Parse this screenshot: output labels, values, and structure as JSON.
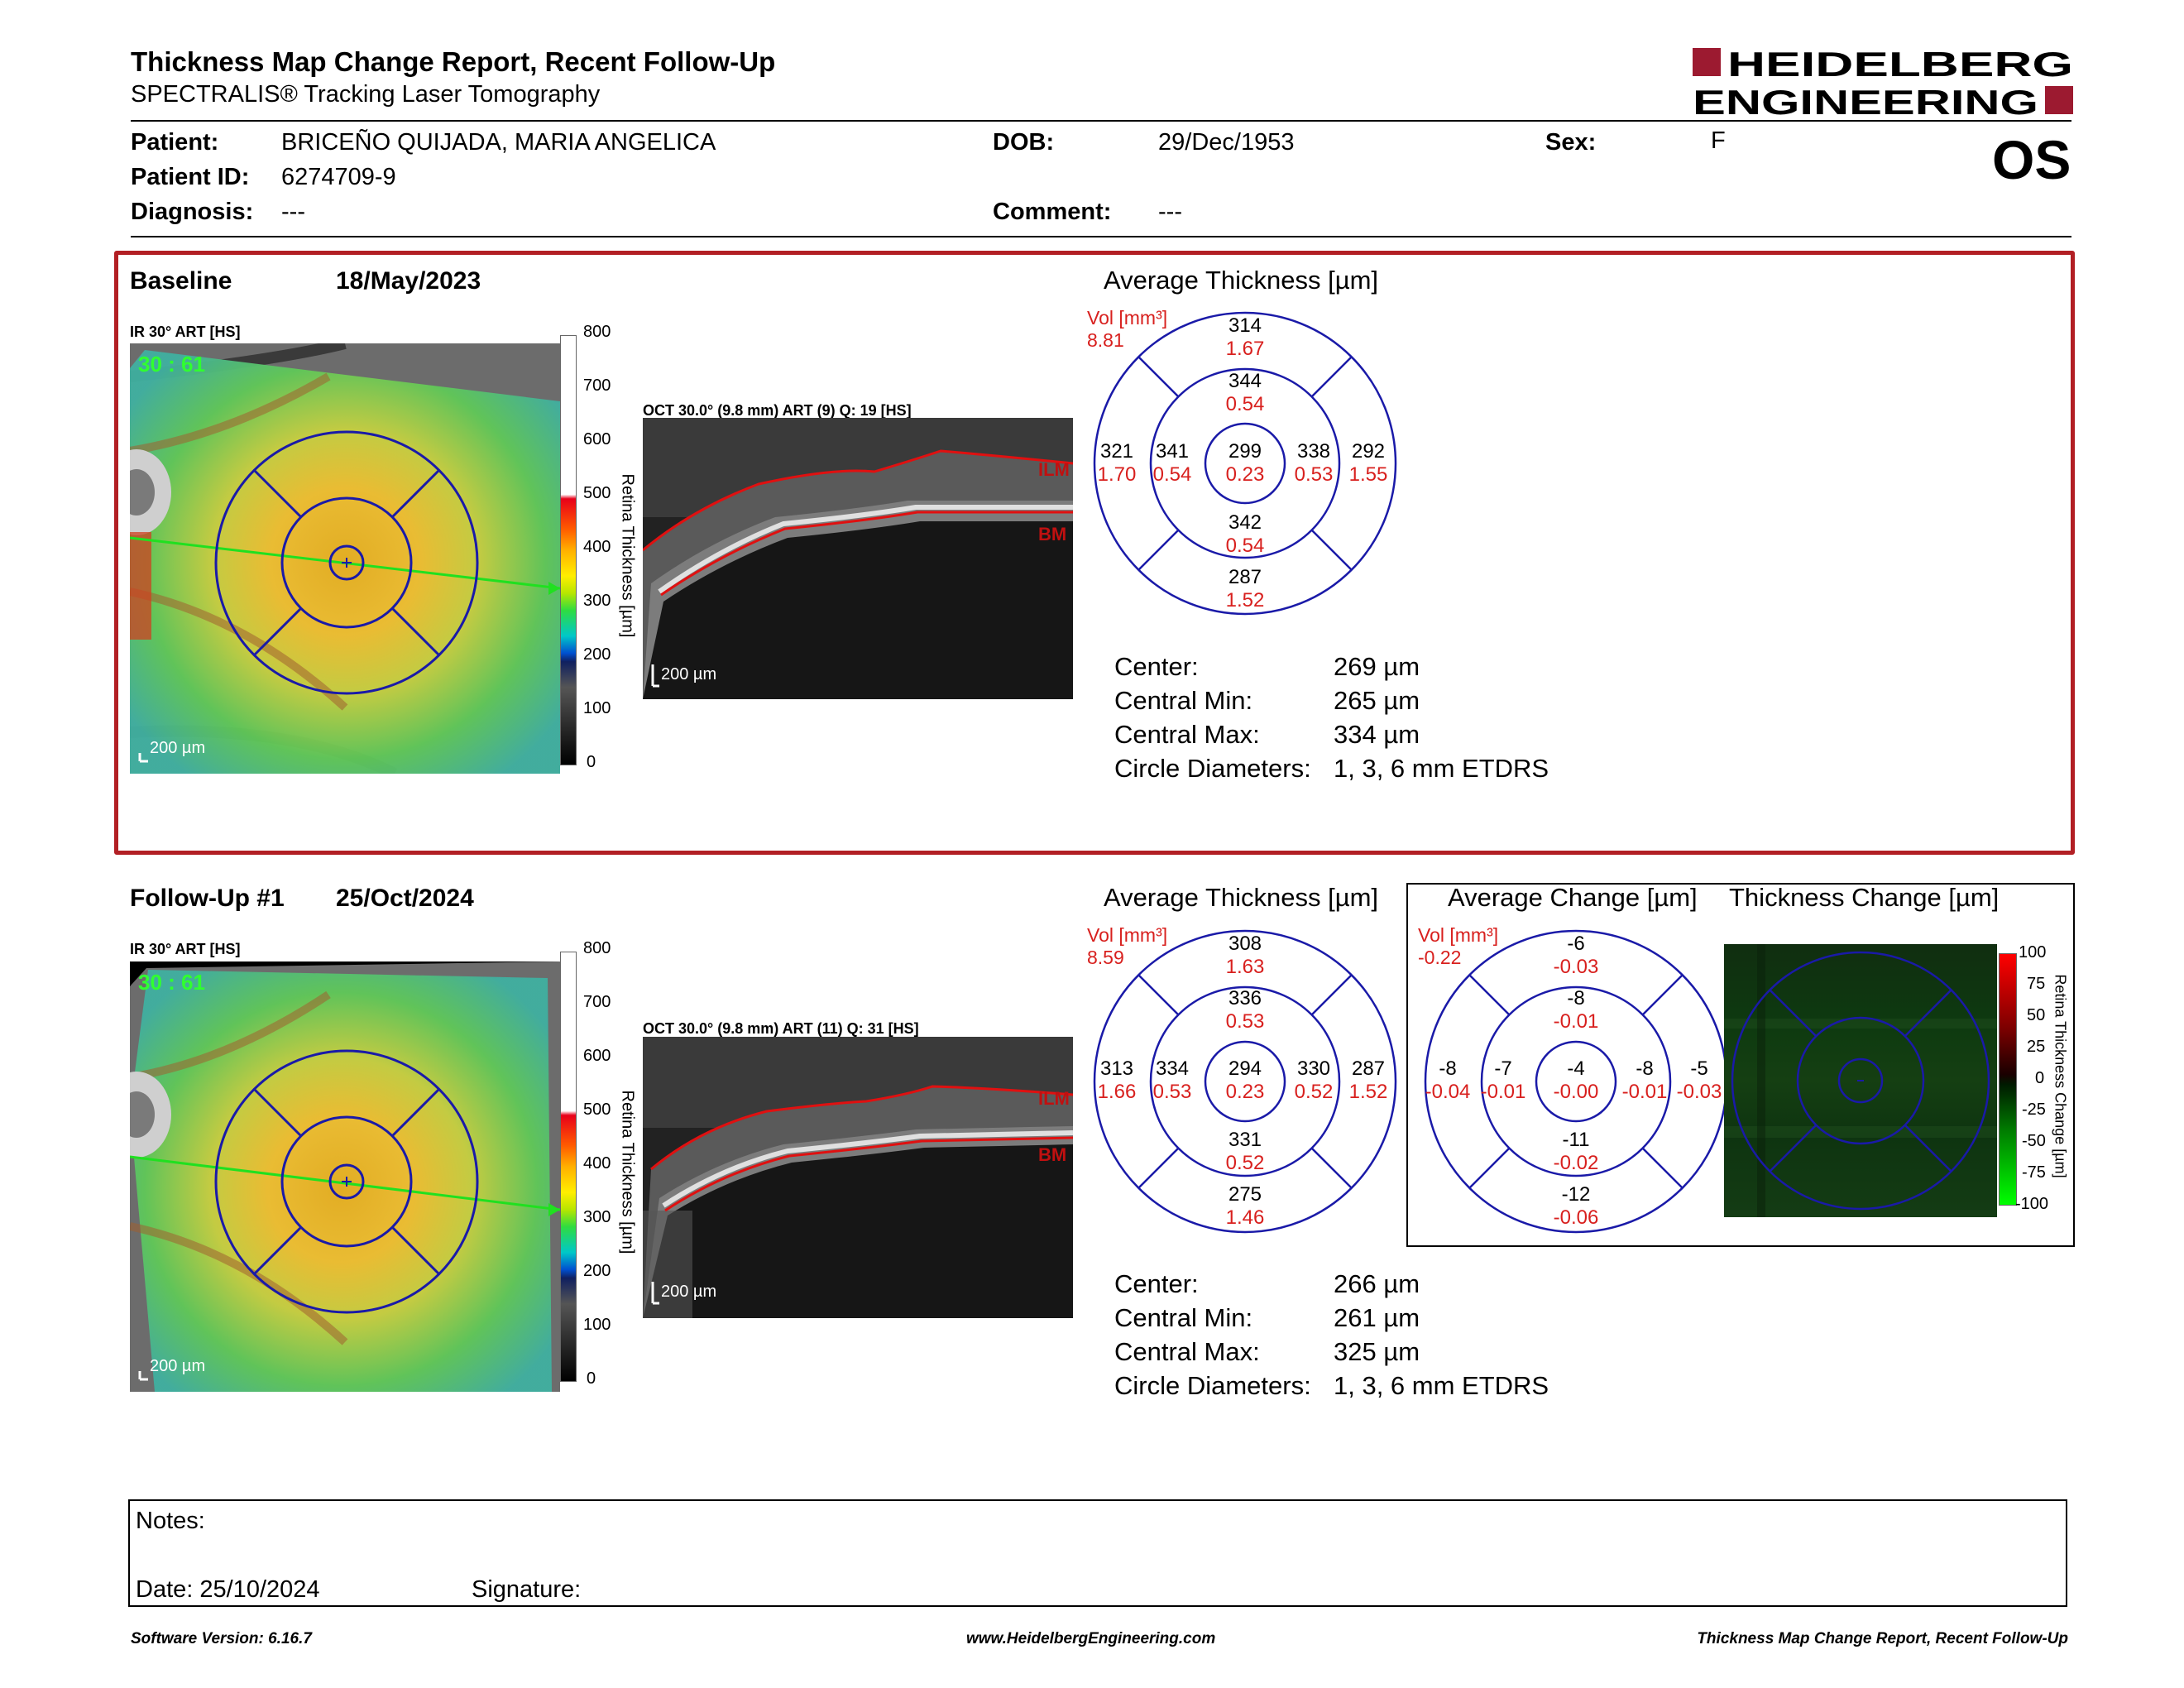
{
  "header": {
    "title": "Thickness Map Change Report, Recent Follow-Up",
    "subtitle": "SPECTRALIS® Tracking Laser Tomography",
    "logo_line1": "HEIDELBERG",
    "logo_line2": "ENGINEERING",
    "eye": "OS",
    "brand_color": "#9c1a30"
  },
  "patient": {
    "patient_label": "Patient:",
    "patient_value": "BRICEÑO QUIJADA, MARIA ANGELICA",
    "id_label": "Patient ID:",
    "id_value": "6274709-9",
    "diagnosis_label": "Diagnosis:",
    "diagnosis_value": "---",
    "dob_label": "DOB:",
    "dob_value": "29/Dec/1953",
    "comment_label": "Comment:",
    "comment_value": "---",
    "sex_label": "Sex:",
    "sex_value": "F"
  },
  "baseline": {
    "title": "Baseline",
    "date": "18/May/2023",
    "ir_label": "IR 30° ART [HS]",
    "fundus_tag": "30 : 61",
    "scale_label": "200 µm",
    "oct_label": "OCT 30.0° (9.8 mm) ART (9) Q: 19 [HS]",
    "oct_scale": "200 µm",
    "ilm": "ILM",
    "bm": "BM",
    "colorbar_ticks": [
      "800",
      "700",
      "600",
      "500",
      "400",
      "300",
      "200",
      "100",
      "0"
    ],
    "colorbar_title": "Retina Thickness [µm]",
    "avg_title": "Average Thickness [µm]",
    "vol_label": "Vol [mm³]",
    "vol_value": "8.81",
    "sectors": {
      "outer_top": {
        "t": "314",
        "v": "1.67"
      },
      "inner_top": {
        "t": "344",
        "v": "0.54"
      },
      "outer_left": {
        "t": "321",
        "v": "1.70"
      },
      "inner_left": {
        "t": "341",
        "v": "0.54"
      },
      "center": {
        "t": "299",
        "v": "0.23"
      },
      "inner_right": {
        "t": "338",
        "v": "0.53"
      },
      "outer_right": {
        "t": "292",
        "v": "1.55"
      },
      "inner_bottom": {
        "t": "342",
        "v": "0.54"
      },
      "outer_bottom": {
        "t": "287",
        "v": "1.52"
      }
    },
    "stats": [
      {
        "label": "Center:",
        "value": "269 µm"
      },
      {
        "label": "Central Min:",
        "value": "265 µm"
      },
      {
        "label": "Central Max:",
        "value": "334 µm"
      },
      {
        "label": "Circle Diameters:",
        "value": "1, 3, 6 mm ETDRS"
      }
    ]
  },
  "followup": {
    "title": "Follow-Up #1",
    "date": "25/Oct/2024",
    "ir_label": "IR 30° ART [HS]",
    "fundus_tag": "30 : 61",
    "scale_label": "200 µm",
    "oct_label": "OCT 30.0° (9.8 mm) ART (11) Q: 31 [HS]",
    "oct_scale": "200 µm",
    "ilm": "ILM",
    "bm": "BM",
    "colorbar_ticks": [
      "800",
      "700",
      "600",
      "500",
      "400",
      "300",
      "200",
      "100",
      "0"
    ],
    "colorbar_title": "Retina Thickness [µm]",
    "avg_title": "Average Thickness [µm]",
    "vol_label": "Vol [mm³]",
    "vol_value": "8.59",
    "sectors": {
      "outer_top": {
        "t": "308",
        "v": "1.63"
      },
      "inner_top": {
        "t": "336",
        "v": "0.53"
      },
      "outer_left": {
        "t": "313",
        "v": "1.66"
      },
      "inner_left": {
        "t": "334",
        "v": "0.53"
      },
      "center": {
        "t": "294",
        "v": "0.23"
      },
      "inner_right": {
        "t": "330",
        "v": "0.52"
      },
      "outer_right": {
        "t": "287",
        "v": "1.52"
      },
      "inner_bottom": {
        "t": "331",
        "v": "0.52"
      },
      "outer_bottom": {
        "t": "275",
        "v": "1.46"
      }
    },
    "stats": [
      {
        "label": "Center:",
        "value": "266 µm"
      },
      {
        "label": "Central Min:",
        "value": "261 µm"
      },
      {
        "label": "Central Max:",
        "value": "325 µm"
      },
      {
        "label": "Circle Diameters:",
        "value": "1, 3, 6 mm ETDRS"
      }
    ]
  },
  "change": {
    "avg_title": "Average Change [µm]",
    "map_title": "Thickness Change [µm]",
    "vol_label": "Vol [mm³]",
    "vol_value": "-0.22",
    "sectors": {
      "outer_top": {
        "t": "-6",
        "v": "-0.03"
      },
      "inner_top": {
        "t": "-8",
        "v": "-0.01"
      },
      "outer_left": {
        "t": "-8",
        "v": "-0.04"
      },
      "inner_left": {
        "t": "-7",
        "v": "-0.01"
      },
      "center": {
        "t": "-4",
        "v": "-0.00"
      },
      "inner_right": {
        "t": "-8",
        "v": "-0.01"
      },
      "outer_right": {
        "t": "-5",
        "v": "-0.03"
      },
      "inner_bottom": {
        "t": "-11",
        "v": "-0.02"
      },
      "outer_bottom": {
        "t": "-12",
        "v": "-0.06"
      }
    },
    "colorbar_ticks": [
      "100",
      "75",
      "50",
      "25",
      "0",
      "-25",
      "-50",
      "-75",
      "-100"
    ],
    "colorbar_title": "Retina Thickness Change [µm]"
  },
  "notes": {
    "label": "Notes:",
    "date_label": "Date: 25/10/2024",
    "signature_label": "Signature:"
  },
  "footer": {
    "left": "Software Version: 6.16.7",
    "center": "www.HeidelbergEngineering.com",
    "right": "Thickness Map Change Report, Recent Follow-Up"
  },
  "colors": {
    "etdrs_grid": "#1a1aa8",
    "volume_red": "#d8201e",
    "baseline_frame": "#b21f24",
    "ilm_bm_line": "#e01010"
  }
}
